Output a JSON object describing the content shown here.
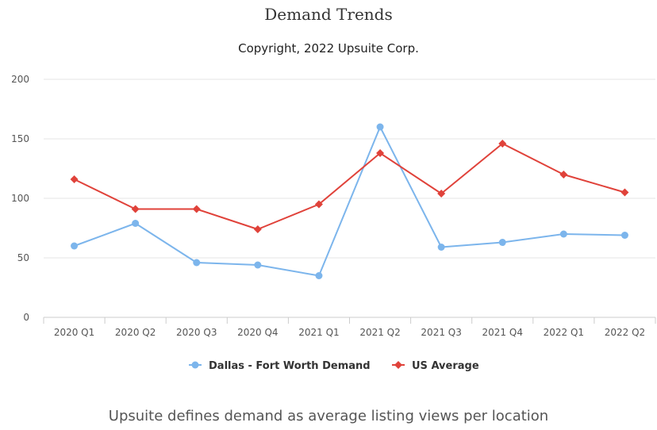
{
  "chart_data": {
    "type": "line",
    "title": "Demand Trends",
    "subtitle": "Copyright, 2022 Upsuite Corp.",
    "footnote": "Upsuite defines demand as average listing views per location",
    "categories": [
      "2020 Q1",
      "2020 Q2",
      "2020 Q3",
      "2020 Q4",
      "2021 Q1",
      "2021 Q2",
      "2021 Q3",
      "2021 Q4",
      "2022 Q1",
      "2022 Q2"
    ],
    "yticks": [
      "0",
      "50",
      "100",
      "150",
      "200"
    ],
    "ylim": [
      0,
      200
    ],
    "grid": true,
    "legend": "bottom-center",
    "series": [
      {
        "name": "Dallas - Fort Worth Demand",
        "color": "#7cb5ec",
        "marker": "circle",
        "values": [
          60,
          79,
          46,
          44,
          35,
          160,
          59,
          63,
          70,
          69
        ]
      },
      {
        "name": "US Average",
        "color": "#e0423a",
        "marker": "diamond",
        "values": [
          116,
          91,
          91,
          74,
          95,
          138,
          104,
          146,
          120,
          105
        ]
      }
    ]
  }
}
